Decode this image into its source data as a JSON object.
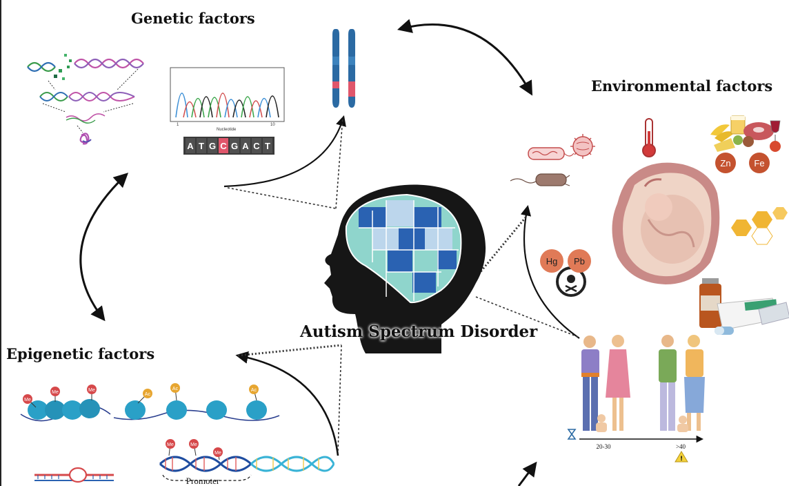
{
  "labels": {
    "genetic": "Genetic factors",
    "environmental": "Environmental factors",
    "epigenetic": "Epigenetic factors",
    "center": "Autism Spectrum Disorder"
  },
  "genetic": {
    "chromatogram_axis": "Nucleotide",
    "tick_start": "1",
    "tick_end": "10",
    "sequence": [
      "A",
      "T",
      "G",
      "C",
      "G",
      "A",
      "C",
      "T"
    ],
    "highlight_index": 3
  },
  "environmental": {
    "elements": [
      "Zn",
      "Fe",
      "Hg",
      "Pb"
    ],
    "age_axis_labels": [
      "20-30",
      ">40"
    ]
  },
  "epigenetic": {
    "marks_me": "Me",
    "marks_ac": "Ac",
    "promoter": "Promoter"
  },
  "colors": {
    "chromosome_blue": "#2b6aa3",
    "chromosome_band": "#e0566b",
    "brain_dark": "#2a62b2",
    "brain_teal": "#8fd5cc",
    "brain_light": "#bcd6ec",
    "head": "#161616",
    "nucleosome": "#2aa0c7",
    "methyl_red": "#d6484a",
    "acetyl_orange": "#e7a631",
    "uterus": "#c98a87",
    "honeycomb": "#f0b533"
  }
}
